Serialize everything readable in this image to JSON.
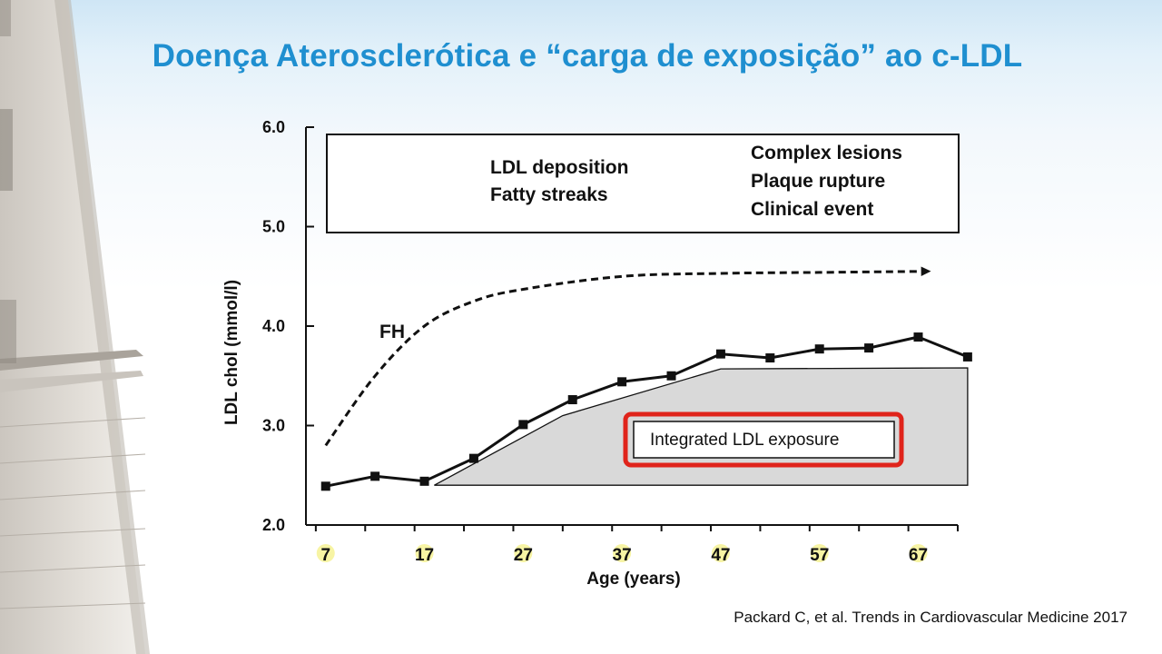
{
  "slide": {
    "title": "Doença Aterosclerótica e “carga de exposição” ao c-LDL",
    "citation": "Packard C, et al. Trends in Cardiovascular Medicine 2017"
  },
  "colors": {
    "title": "#1f8fd0",
    "highlight_box": "#e0241b",
    "tick_highlight": "#f6f39a",
    "exposure_fill": "#d9d9d9"
  },
  "chart_data": {
    "type": "line",
    "xlabel": "Age (years)",
    "ylabel": "LDL chol (mmol/l)",
    "xlim": [
      5,
      71
    ],
    "ylim": [
      2.0,
      6.0
    ],
    "x_ticks": [
      7,
      17,
      27,
      37,
      47,
      57,
      67
    ],
    "x_tick_labels": [
      "7",
      "17",
      "27",
      "37",
      "47",
      "57",
      "67"
    ],
    "y_ticks": [
      2.0,
      3.0,
      4.0,
      5.0,
      6.0
    ],
    "y_tick_labels": [
      "2.0",
      "3.0",
      "4.0",
      "5.0",
      "6.0"
    ],
    "series": [
      {
        "name": "",
        "style": "solid-square-markers",
        "x": [
          7,
          12,
          17,
          22,
          27,
          32,
          37,
          42,
          47,
          52,
          57,
          62,
          67,
          72
        ],
        "y": [
          2.39,
          2.49,
          2.44,
          2.67,
          3.01,
          3.26,
          3.44,
          3.5,
          3.72,
          3.68,
          3.77,
          3.78,
          3.89,
          3.69
        ]
      },
      {
        "name": "FH",
        "style": "dashed-arrow",
        "x": [
          7,
          12,
          17,
          22,
          27,
          37,
          47,
          57,
          67
        ],
        "y": [
          2.8,
          3.5,
          4.0,
          4.25,
          4.37,
          4.5,
          4.53,
          4.54,
          4.55
        ]
      }
    ],
    "area": {
      "name": "Integrated LDL exposure",
      "x": [
        18,
        31,
        47,
        72,
        72,
        18
      ],
      "y": [
        2.4,
        3.1,
        3.57,
        3.58,
        2.4,
        2.4
      ]
    },
    "annotations": {
      "top_box": {
        "left_lines": [
          "LDL deposition",
          "Fatty streaks"
        ],
        "right_lines": [
          "Complex lesions",
          "Plaque rupture",
          "Clinical event"
        ]
      },
      "fh_label": "FH",
      "exposure_label": "Integrated LDL exposure"
    },
    "grid": false,
    "legend": "none"
  }
}
